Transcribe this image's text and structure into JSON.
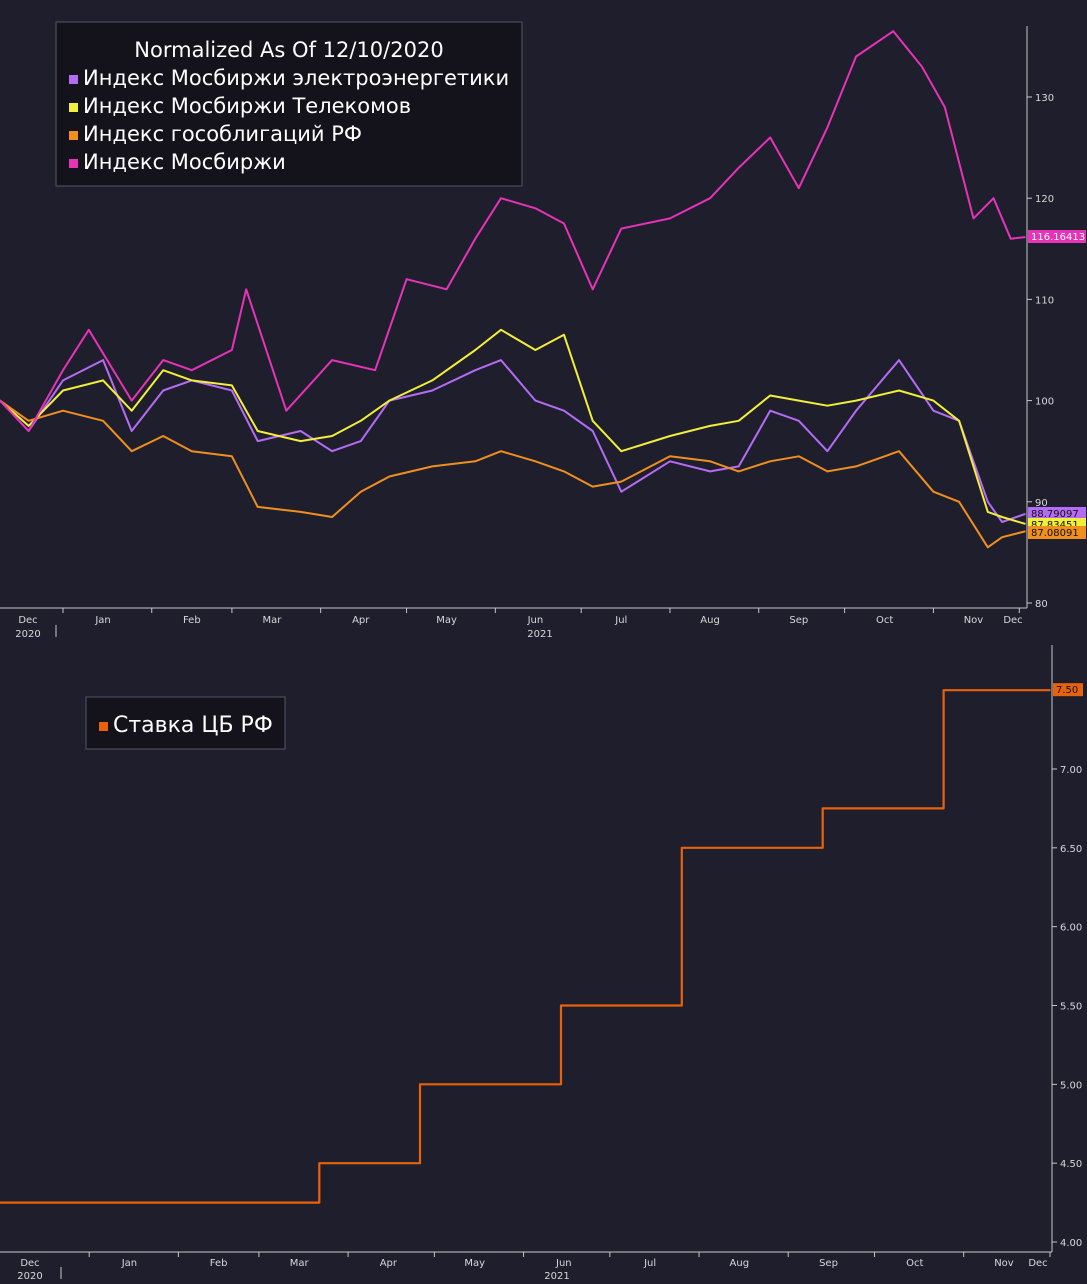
{
  "colors": {
    "background": "#1f1e2d",
    "axis": "#c8c8c8",
    "electro": "#b46cf5",
    "telecom": "#f2ef3a",
    "bonds": "#ef8f1f",
    "moex": "#e633b8",
    "key_rate": "#e8620c"
  },
  "chart_data": [
    {
      "type": "line",
      "title": "Normalized As Of 12/10/2020",
      "x_axis": {
        "ticks": [
          "Dec",
          "Jan",
          "Feb",
          "Mar",
          "Apr",
          "May",
          "Jun",
          "Jul",
          "Aug",
          "Sep",
          "Oct",
          "Nov",
          "Dec"
        ],
        "year_labels": [
          "2020",
          "2021"
        ],
        "range": [
          "2020-12-10",
          "2021-12-03"
        ]
      },
      "y_axis": {
        "position": "right",
        "ticks": [
          80,
          90,
          100,
          110,
          120,
          130
        ],
        "range": [
          79,
          138
        ]
      },
      "legend_position": "top-left",
      "series": [
        {
          "name": "Индекс Мосбиржи электроэнергетики",
          "color_key": "electro",
          "last_label": "88.79097",
          "points": [
            [
              "2020-12-10",
              100.0
            ],
            [
              "2020-12-20",
              97.0
            ],
            [
              "2021-01-01",
              102.0
            ],
            [
              "2021-01-15",
              104.0
            ],
            [
              "2021-01-25",
              97.0
            ],
            [
              "2021-02-05",
              101.0
            ],
            [
              "2021-02-15",
              102.0
            ],
            [
              "2021-03-01",
              101.0
            ],
            [
              "2021-03-10",
              96.0
            ],
            [
              "2021-03-25",
              97.0
            ],
            [
              "2021-04-05",
              95.0
            ],
            [
              "2021-04-15",
              96.0
            ],
            [
              "2021-04-25",
              100.0
            ],
            [
              "2021-05-10",
              101.0
            ],
            [
              "2021-05-25",
              103.0
            ],
            [
              "2021-06-03",
              104.0
            ],
            [
              "2021-06-15",
              100.0
            ],
            [
              "2021-06-25",
              99.0
            ],
            [
              "2021-07-05",
              97.0
            ],
            [
              "2021-07-15",
              91.0
            ],
            [
              "2021-08-01",
              94.0
            ],
            [
              "2021-08-15",
              93.0
            ],
            [
              "2021-08-25",
              93.5
            ],
            [
              "2021-09-05",
              99.0
            ],
            [
              "2021-09-15",
              98.0
            ],
            [
              "2021-09-25",
              95.0
            ],
            [
              "2021-10-05",
              99.0
            ],
            [
              "2021-10-20",
              104.0
            ],
            [
              "2021-11-01",
              99.0
            ],
            [
              "2021-11-10",
              98.0
            ],
            [
              "2021-11-20",
              90.0
            ],
            [
              "2021-11-25",
              88.0
            ],
            [
              "2021-12-03",
              88.79
            ]
          ]
        },
        {
          "name": "Индекс Мосбиржи Телекомов",
          "color_key": "telecom",
          "last_label": "87.83451",
          "points": [
            [
              "2020-12-10",
              100.0
            ],
            [
              "2020-12-20",
              97.5
            ],
            [
              "2021-01-01",
              101.0
            ],
            [
              "2021-01-15",
              102.0
            ],
            [
              "2021-01-25",
              99.0
            ],
            [
              "2021-02-05",
              103.0
            ],
            [
              "2021-02-15",
              102.0
            ],
            [
              "2021-03-01",
              101.5
            ],
            [
              "2021-03-10",
              97.0
            ],
            [
              "2021-03-25",
              96.0
            ],
            [
              "2021-04-05",
              96.5
            ],
            [
              "2021-04-15",
              98.0
            ],
            [
              "2021-04-25",
              100.0
            ],
            [
              "2021-05-10",
              102.0
            ],
            [
              "2021-05-25",
              105.0
            ],
            [
              "2021-06-03",
              107.0
            ],
            [
              "2021-06-15",
              105.0
            ],
            [
              "2021-06-25",
              106.5
            ],
            [
              "2021-07-05",
              98.0
            ],
            [
              "2021-07-15",
              95.0
            ],
            [
              "2021-08-01",
              96.5
            ],
            [
              "2021-08-15",
              97.5
            ],
            [
              "2021-08-25",
              98.0
            ],
            [
              "2021-09-05",
              100.5
            ],
            [
              "2021-09-15",
              100.0
            ],
            [
              "2021-09-25",
              99.5
            ],
            [
              "2021-10-05",
              100.0
            ],
            [
              "2021-10-20",
              101.0
            ],
            [
              "2021-11-01",
              100.0
            ],
            [
              "2021-11-10",
              98.0
            ],
            [
              "2021-11-20",
              89.0
            ],
            [
              "2021-11-25",
              88.5
            ],
            [
              "2021-12-03",
              87.83
            ]
          ]
        },
        {
          "name": "Индекс гособлигаций РФ",
          "color_key": "bonds",
          "last_label": "87.08091",
          "points": [
            [
              "2020-12-10",
              100.0
            ],
            [
              "2020-12-20",
              98.0
            ],
            [
              "2021-01-01",
              99.0
            ],
            [
              "2021-01-15",
              98.0
            ],
            [
              "2021-01-25",
              95.0
            ],
            [
              "2021-02-05",
              96.5
            ],
            [
              "2021-02-15",
              95.0
            ],
            [
              "2021-03-01",
              94.5
            ],
            [
              "2021-03-10",
              89.5
            ],
            [
              "2021-03-25",
              89.0
            ],
            [
              "2021-04-05",
              88.5
            ],
            [
              "2021-04-15",
              91.0
            ],
            [
              "2021-04-25",
              92.5
            ],
            [
              "2021-05-10",
              93.5
            ],
            [
              "2021-05-25",
              94.0
            ],
            [
              "2021-06-03",
              95.0
            ],
            [
              "2021-06-15",
              94.0
            ],
            [
              "2021-06-25",
              93.0
            ],
            [
              "2021-07-05",
              91.5
            ],
            [
              "2021-07-15",
              92.0
            ],
            [
              "2021-08-01",
              94.5
            ],
            [
              "2021-08-15",
              94.0
            ],
            [
              "2021-08-25",
              93.0
            ],
            [
              "2021-09-05",
              94.0
            ],
            [
              "2021-09-15",
              94.5
            ],
            [
              "2021-09-25",
              93.0
            ],
            [
              "2021-10-05",
              93.5
            ],
            [
              "2021-10-20",
              95.0
            ],
            [
              "2021-11-01",
              91.0
            ],
            [
              "2021-11-10",
              90.0
            ],
            [
              "2021-11-20",
              85.5
            ],
            [
              "2021-11-25",
              86.5
            ],
            [
              "2021-12-03",
              87.08
            ]
          ]
        },
        {
          "name": "Индекс Мосбиржи",
          "color_key": "moex",
          "last_label": "116.16413",
          "points": [
            [
              "2020-12-10",
              100.0
            ],
            [
              "2020-12-20",
              97.0
            ],
            [
              "2021-01-01",
              103.0
            ],
            [
              "2021-01-10",
              107.0
            ],
            [
              "2021-01-25",
              100.0
            ],
            [
              "2021-02-05",
              104.0
            ],
            [
              "2021-02-15",
              103.0
            ],
            [
              "2021-03-01",
              105.0
            ],
            [
              "2021-03-06",
              111.0
            ],
            [
              "2021-03-20",
              99.0
            ],
            [
              "2021-04-05",
              104.0
            ],
            [
              "2021-04-20",
              103.0
            ],
            [
              "2021-05-01",
              112.0
            ],
            [
              "2021-05-15",
              111.0
            ],
            [
              "2021-05-25",
              116.0
            ],
            [
              "2021-06-03",
              120.0
            ],
            [
              "2021-06-15",
              119.0
            ],
            [
              "2021-06-25",
              117.5
            ],
            [
              "2021-07-05",
              111.0
            ],
            [
              "2021-07-15",
              117.0
            ],
            [
              "2021-08-01",
              118.0
            ],
            [
              "2021-08-15",
              120.0
            ],
            [
              "2021-08-25",
              123.0
            ],
            [
              "2021-09-05",
              126.0
            ],
            [
              "2021-09-15",
              121.0
            ],
            [
              "2021-09-25",
              127.0
            ],
            [
              "2021-10-05",
              134.0
            ],
            [
              "2021-10-18",
              136.5
            ],
            [
              "2021-10-28",
              133.0
            ],
            [
              "2021-11-05",
              129.0
            ],
            [
              "2021-11-15",
              118.0
            ],
            [
              "2021-11-22",
              120.0
            ],
            [
              "2021-11-28",
              116.0
            ],
            [
              "2021-12-03",
              116.16
            ]
          ]
        }
      ]
    },
    {
      "type": "line",
      "step": true,
      "x_axis": {
        "ticks": [
          "Dec",
          "Jan",
          "Feb",
          "Mar",
          "Apr",
          "May",
          "Jun",
          "Jul",
          "Aug",
          "Sep",
          "Oct",
          "Nov",
          "Dec"
        ],
        "year_labels": [
          "2020",
          "2021"
        ],
        "range": [
          "2020-12-01",
          "2021-12-01"
        ]
      },
      "y_axis": {
        "position": "right",
        "ticks": [
          "4.00",
          "4.50",
          "5.00",
          "5.50",
          "6.00",
          "6.50",
          "7.00"
        ],
        "range": [
          4.0,
          7.85
        ]
      },
      "legend_position": "top-left",
      "series": [
        {
          "name": "Ставка ЦБ РФ",
          "color_key": "key_rate",
          "last_label": "7.50",
          "points": [
            [
              "2020-12-01",
              4.25
            ],
            [
              "2021-03-22",
              4.5
            ],
            [
              "2021-04-26",
              5.0
            ],
            [
              "2021-06-14",
              5.5
            ],
            [
              "2021-07-26",
              6.5
            ],
            [
              "2021-09-13",
              6.75
            ],
            [
              "2021-10-25",
              7.5
            ],
            [
              "2021-12-01",
              7.5
            ]
          ]
        }
      ]
    }
  ]
}
